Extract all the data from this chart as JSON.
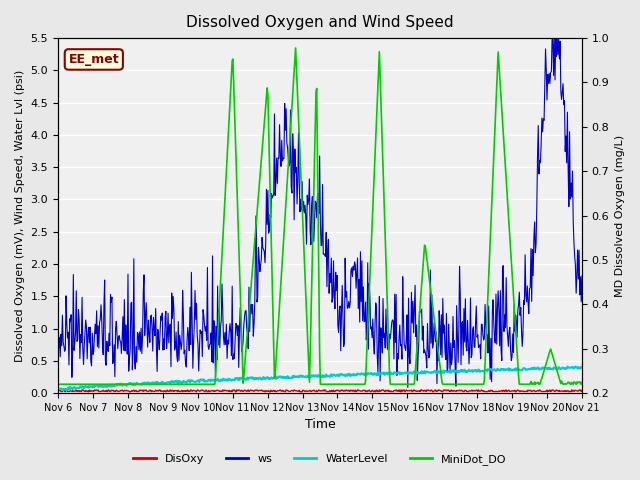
{
  "title": "Dissolved Oxygen and Wind Speed",
  "ylabel_left": "Dissolved Oxygen (mV), Wind Speed, Water Lvl (psi)",
  "ylabel_right": "MD Dissolved Oxygen (mg/L)",
  "xlabel": "Time",
  "ylim_left": [
    0.0,
    5.5
  ],
  "ylim_right": [
    0.2,
    1.0
  ],
  "yticks_left": [
    0.0,
    0.5,
    1.0,
    1.5,
    2.0,
    2.5,
    3.0,
    3.5,
    4.0,
    4.5,
    5.0,
    5.5
  ],
  "yticks_right": [
    0.2,
    0.3,
    0.4,
    0.5,
    0.6,
    0.7,
    0.8,
    0.9,
    1.0
  ],
  "xtick_labels": [
    "Nov 6",
    "Nov 7",
    "Nov 8",
    "Nov 9",
    "Nov 10",
    "Nov 11",
    "Nov 12",
    "Nov 13",
    "Nov 14",
    "Nov 15",
    "Nov 16",
    "Nov 17",
    "Nov 18",
    "Nov 19",
    "Nov 20",
    "Nov 21"
  ],
  "annotation_text": "EE_met",
  "annotation_color": "#8B0000",
  "background_color": "#E8E8E8",
  "axes_bg_color": "#F0F0F0",
  "colors": {
    "DisOxy": "#CC0000",
    "ws": "#0000CC",
    "WaterLevel": "#00CCCC",
    "MiniDot_DO": "#00CC00"
  },
  "legend_labels": [
    "DisOxy",
    "ws",
    "WaterLevel",
    "MiniDot_DO"
  ],
  "n_days": 15,
  "seed": 42
}
